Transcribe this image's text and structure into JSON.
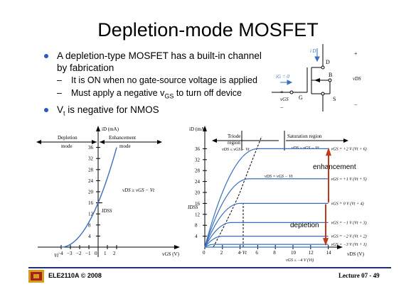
{
  "slide": {
    "title": "Depletion-mode MOSFET",
    "bullets": [
      {
        "text": "A depletion-type MOSFET has a built-in channel by fabrication",
        "subs": [
          "It is ON when no gate-source voltage is applied"
        ]
      },
      {
        "text": "",
        "subs": []
      }
    ],
    "bullet1_sub2_pre": "Must apply a negative v",
    "bullet1_sub2_sub": "GS",
    "bullet1_sub2_post": " to turn off device",
    "bullet2_pre": "V",
    "bullet2_sub": "t",
    "bullet2_post": " is negative for NMOS"
  },
  "circuit": {
    "i_d": "i D",
    "d": "D",
    "b": "B",
    "g": "G",
    "s": "S",
    "i_g": "iG = 0",
    "v_ds": "vDS",
    "v_gs": "vGS",
    "plus": "+",
    "minus": "−"
  },
  "left_chart": {
    "ylabel": "iD (mA)",
    "xlabel": "vGS (V)",
    "regions": [
      "Depletion",
      "mode",
      "Enhancement",
      "mode"
    ],
    "yticks": [
      "4",
      "8",
      "12",
      "16",
      "20",
      "24",
      "28",
      "32",
      "36"
    ],
    "xticks": [
      "−4",
      "−3",
      "−2",
      "−1",
      "0",
      "1",
      "2"
    ],
    "idss": "IDSS",
    "annotation": "vDS ≥ vGS − Vt",
    "vt": "Vt",
    "chart_data": {
      "type": "line",
      "x": [
        -4,
        -3,
        -2,
        -1,
        0,
        1,
        2
      ],
      "values": [
        0,
        1,
        4,
        9,
        16,
        25,
        36
      ],
      "xlabel": "vGS (V)",
      "ylabel": "iD (mA)",
      "xlim": [
        -5,
        3
      ],
      "ylim": [
        0,
        40
      ]
    }
  },
  "right_chart": {
    "ylabel": "iD (mA)",
    "xlabel": "vDS (V)",
    "triode": [
      "Triode",
      "region",
      "vDS ≤ vGS − Vt"
    ],
    "saturation": [
      "Saturation region",
      "vDS ≥ vGS − Vt"
    ],
    "boundary": "vDS = vGS − Vt",
    "yticks": [
      "4",
      "8",
      "12",
      "16",
      "20",
      "24",
      "28",
      "32",
      "36"
    ],
    "xticks": [
      "0",
      "2",
      "4",
      "6",
      "8",
      "10",
      "12",
      "14"
    ],
    "idss": "IDSS",
    "minus_vt": "−Vt",
    "cutoff": "vGS ≤ −4 V (Vt)",
    "curve_labels": [
      "vGS = +2 V   (Vt + 6)",
      "vGS = +1 V   (Vt + 5)",
      "vGS = 0 V   (Vt + 4)",
      "vGS = −1 V   (Vt + 3)",
      "vGS = −2 V   (Vt + 2)",
      "vGS = −3 V   (Vt + 1)"
    ],
    "enhancement": "enhancement",
    "depletion": "depletion",
    "arrow_color": "#c0391b",
    "chart_data": {
      "type": "line",
      "categories": [
        "vGS = +2 V",
        "vGS = +1 V",
        "vGS = 0 V",
        "vGS = −1 V",
        "vGS = −2 V",
        "vGS = −3 V"
      ],
      "saturation_values": [
        36,
        25,
        16,
        9,
        4,
        1
      ],
      "xlim": [
        0,
        15
      ],
      "ylim": [
        0,
        38
      ]
    }
  },
  "footer": {
    "left": "ELE2110A © 2008",
    "right": "Lecture 07 - 49"
  }
}
